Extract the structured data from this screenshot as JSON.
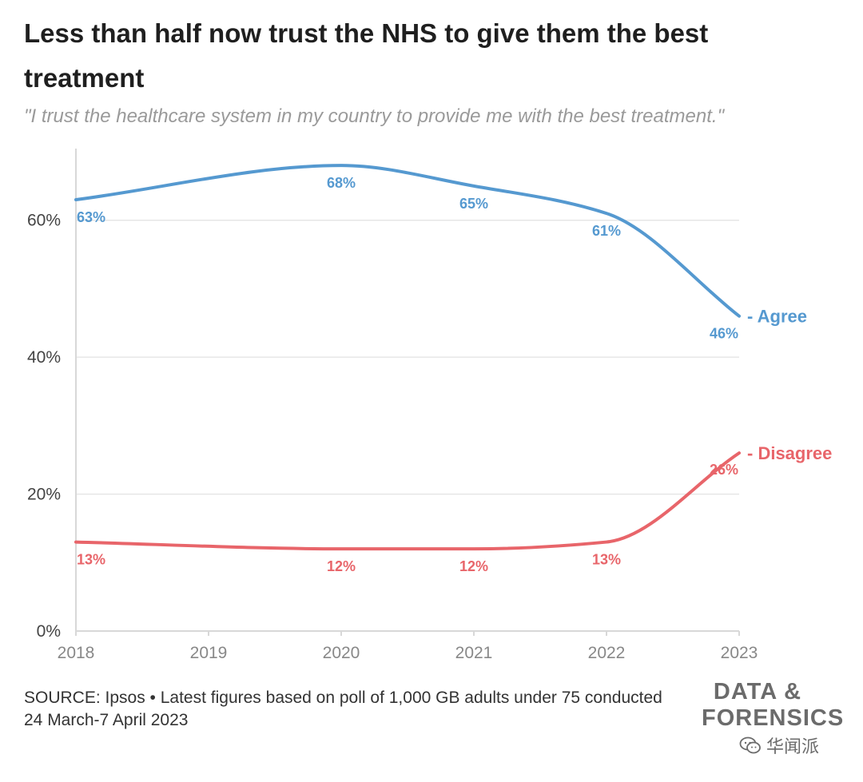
{
  "title": "Less than half now trust the NHS to give them the best treatment",
  "subtitle": "\"I trust the healthcare system in my country to provide me with the best treatment.\"",
  "source": "SOURCE: Ipsos • Latest figures based on poll of 1,000 GB adults under 75 conducted 24 March-7 April 2023",
  "brand": {
    "line1": "DATA &",
    "line2": "FORENSICS"
  },
  "watermark": {
    "text": "华闻派",
    "icon": "wechat-icon"
  },
  "chart_data": {
    "type": "line",
    "x": [
      2018,
      2019,
      2020,
      2021,
      2022,
      2023
    ],
    "x_tick_labels": [
      "2018",
      "2019",
      "2020",
      "2021",
      "2022",
      "2023"
    ],
    "y_tick_labels": [
      "0%",
      "20%",
      "40%",
      "60%"
    ],
    "y_ticks": [
      0,
      20,
      40,
      60
    ],
    "ylim": [
      0,
      70
    ],
    "grid": true,
    "series": [
      {
        "name": "- Agree",
        "color": "#5599d0",
        "x": [
          2018,
          2020,
          2021,
          2022,
          2023
        ],
        "values": [
          63,
          68,
          65,
          61,
          46
        ],
        "labels": [
          "63%",
          "68%",
          "65%",
          "61%",
          "46%"
        ]
      },
      {
        "name": "- Disagree",
        "color": "#e8656a",
        "x": [
          2018,
          2020,
          2021,
          2022,
          2023
        ],
        "values": [
          13,
          12,
          12,
          13,
          26
        ],
        "labels": [
          "13%",
          "12%",
          "12%",
          "13%",
          "26%"
        ]
      }
    ]
  }
}
